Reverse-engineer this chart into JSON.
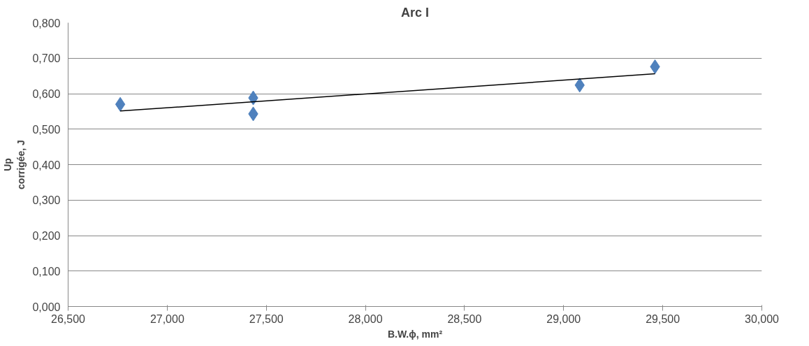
{
  "chart_data": {
    "type": "scatter",
    "title": "Arc I",
    "xlabel": "B.W.ϕ, mm²",
    "ylabel": "Up\ncorrigée, J",
    "x": [
      26.763,
      27.434,
      27.434,
      29.081,
      29.461
    ],
    "series": [
      {
        "color": "#4f81bd",
        "values": [
          0.57,
          0.588,
          0.543,
          0.624,
          0.676
        ],
        "marker": "diamond"
      },
      {
        "type": "line",
        "color": "#000000",
        "x": [
          26.763,
          29.461
        ],
        "values": [
          0.551,
          0.656
        ]
      }
    ],
    "xlim": [
      26.5,
      30
    ],
    "ylim": [
      0,
      0.8
    ],
    "xticks": [
      {
        "value": 26.5,
        "label": "26,500"
      },
      {
        "value": 27,
        "label": "27,000"
      },
      {
        "value": 27.5,
        "label": "27,500"
      },
      {
        "value": 28,
        "label": "28,000"
      },
      {
        "value": 28.5,
        "label": "28,500"
      },
      {
        "value": 29,
        "label": "29,000"
      },
      {
        "value": 29.5,
        "label": "29,500"
      },
      {
        "value": 30,
        "label": "30,000"
      }
    ],
    "yticks": [
      {
        "value": 0,
        "label": "0,000"
      },
      {
        "value": 0.1,
        "label": "0,100"
      },
      {
        "value": 0.2,
        "label": "0,200"
      },
      {
        "value": 0.3,
        "label": "0,300"
      },
      {
        "value": 0.4,
        "label": "0,400"
      },
      {
        "value": 0.5,
        "label": "0,500"
      },
      {
        "value": 0.6,
        "label": "0,600"
      },
      {
        "value": 0.7,
        "label": "0,700"
      },
      {
        "value": 0.8,
        "label": "0,800"
      }
    ],
    "grid": "y"
  }
}
